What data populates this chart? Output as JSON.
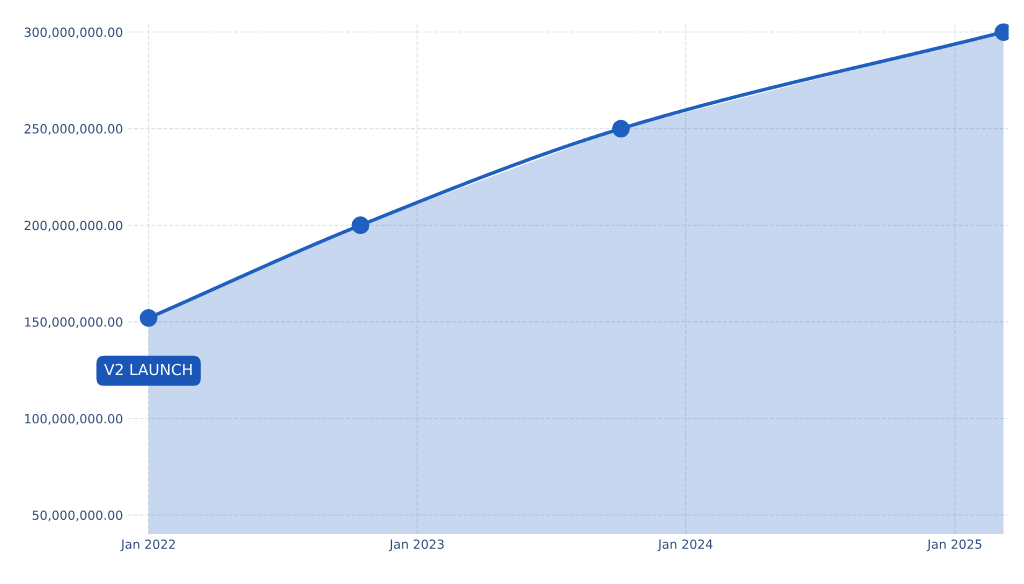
{
  "chart_data": {
    "type": "area",
    "x": [
      "2022-01-01",
      "2022-10-16",
      "2023-10-05",
      "2025-03-08"
    ],
    "series": [
      {
        "color": "#1f5fbf",
        "values": [
          152000000,
          200000000,
          250000000,
          300000000
        ]
      }
    ],
    "xlim": [
      "2021-12-04",
      "2025-03-15"
    ],
    "xticks": [
      {
        "value": "2022-01-01",
        "label": "Jan 2022"
      },
      {
        "value": "2023-01-01",
        "label": "Jan 2023"
      },
      {
        "value": "2024-01-01",
        "label": "Jan 2024"
      },
      {
        "value": "2025-01-01",
        "label": "Jan 2025"
      }
    ],
    "ylim": [
      40000000,
      304500000
    ],
    "yticks": [
      {
        "value": 50000000,
        "label": "50,000,000.00"
      },
      {
        "value": 100000000,
        "label": "100,000,000.00"
      },
      {
        "value": 150000000,
        "label": "150,000,000.00"
      },
      {
        "value": 200000000,
        "label": "200,000,000.00"
      },
      {
        "value": 250000000,
        "label": "250,000,000.00"
      },
      {
        "value": 300000000,
        "label": "300,000,000.00"
      }
    ],
    "annotations": [
      "V2 LAUNCH"
    ],
    "grid": true,
    "marker": "circle",
    "line_style": "solid",
    "legend": false
  }
}
